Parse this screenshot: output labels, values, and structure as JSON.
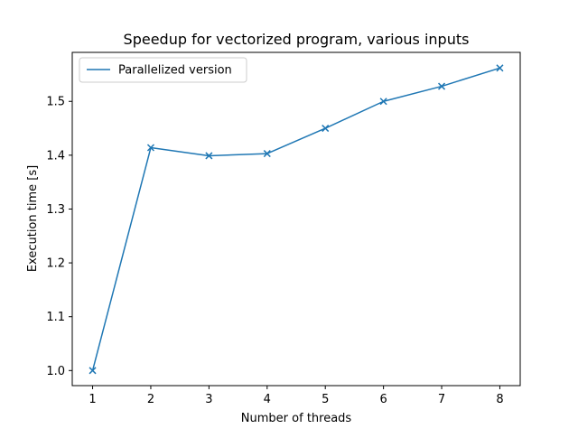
{
  "chart_data": {
    "type": "line",
    "title": "Speedup for vectorized program, various inputs",
    "xlabel": "Number of threads",
    "ylabel": "Execution time [s]",
    "x": [
      1,
      2,
      3,
      4,
      5,
      6,
      7,
      8
    ],
    "x_ticks": [
      "1",
      "2",
      "3",
      "4",
      "5",
      "6",
      "7",
      "8"
    ],
    "y_ticks": [
      1.0,
      1.1,
      1.2,
      1.3,
      1.4,
      1.5
    ],
    "y_tick_labels": [
      "1.0",
      "1.1",
      "1.2",
      "1.3",
      "1.4",
      "1.5"
    ],
    "xlim": [
      0.65,
      8.35
    ],
    "ylim": [
      0.972,
      1.591
    ],
    "grid": false,
    "legend_position": "upper left",
    "series": [
      {
        "name": "Parallelized version",
        "color": "#1f77b4",
        "marker": "x",
        "values": [
          1.0,
          1.414,
          1.399,
          1.403,
          1.45,
          1.5,
          1.528,
          1.562
        ]
      }
    ]
  }
}
